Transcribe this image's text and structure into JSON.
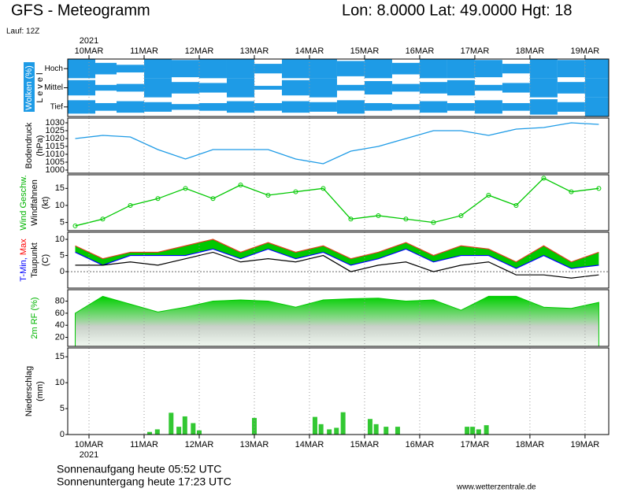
{
  "header": {
    "title": "GFS - Meteogramm",
    "location": "Lon: 8.0000 Lat: 49.0000 Hgt: 18",
    "run": "Lauf: 12Z"
  },
  "time_axis": {
    "year": "2021",
    "xlim": [
      -0.386,
      9.43
    ],
    "xticks": [
      {
        "value": 0,
        "label": "10MAR"
      },
      {
        "value": 1,
        "label": "11MAR"
      },
      {
        "value": 2,
        "label": "12MAR"
      },
      {
        "value": 3,
        "label": "13MAR"
      },
      {
        "value": 4,
        "label": "14MAR"
      },
      {
        "value": 5,
        "label": "15MAR"
      },
      {
        "value": 6,
        "label": "16MAR"
      },
      {
        "value": 7,
        "label": "17MAR"
      },
      {
        "value": 8,
        "label": "18MAR"
      },
      {
        "value": 9,
        "label": "19MAR"
      }
    ]
  },
  "chart_data": [
    {
      "type": "cloud",
      "ylabel": [
        [
          {
            "text": "Wolken (%)",
            "color": "#ffffff"
          }
        ],
        [
          {
            "text": "L e v e l",
            "color": "#000000"
          }
        ]
      ],
      "categories": [
        "Hoch",
        "Mittel",
        "Tief"
      ],
      "color": "#1e9be6",
      "x": [
        -0.25,
        0.25,
        0.75,
        1.25,
        1.75,
        2.25,
        2.75,
        3.25,
        3.75,
        4.25,
        4.75,
        5.25,
        5.75,
        6.25,
        6.75,
        7.25,
        7.75,
        8.25,
        8.75,
        9.25
      ],
      "series": [
        {
          "name": "Hoch",
          "values": [
            100,
            60,
            40,
            100,
            90,
            100,
            100,
            50,
            100,
            100,
            80,
            100,
            60,
            100,
            100,
            90,
            50,
            100,
            90,
            100
          ]
        },
        {
          "name": "Mittel",
          "values": [
            80,
            30,
            40,
            100,
            60,
            50,
            100,
            20,
            80,
            100,
            30,
            70,
            40,
            60,
            80,
            30,
            50,
            100,
            60,
            100
          ]
        },
        {
          "name": "Tief",
          "values": [
            70,
            40,
            60,
            50,
            30,
            40,
            60,
            40,
            60,
            50,
            70,
            40,
            30,
            60,
            40,
            70,
            40,
            80,
            50,
            100
          ]
        }
      ]
    },
    {
      "type": "line",
      "ylabel": [
        [
          {
            "text": "Bodendruck",
            "color": "#000000"
          }
        ],
        [
          {
            "text": "(hPa)",
            "color": "#000000"
          }
        ]
      ],
      "ylim": [
        998,
        1033
      ],
      "yticks": [
        1000,
        1005,
        1010,
        1015,
        1020,
        1025,
        1030
      ],
      "x": [
        -0.25,
        0.25,
        0.75,
        1.25,
        1.75,
        2.25,
        2.75,
        3.25,
        3.75,
        4.25,
        4.75,
        5.25,
        5.75,
        6.25,
        6.75,
        7.25,
        7.75,
        8.25,
        8.75,
        9.25
      ],
      "series": [
        {
          "name": "Bodendruck",
          "color": "#1e9be6",
          "values": [
            1020,
            1022,
            1021,
            1013,
            1007,
            1013,
            1013,
            1013,
            1007,
            1004,
            1012,
            1015,
            1020,
            1025,
            1025,
            1022,
            1026,
            1027,
            1030,
            1029
          ]
        }
      ]
    },
    {
      "type": "line",
      "markers": true,
      "ylabel": [
        [
          {
            "text": "Wind Geschw.",
            "color": "#00b400"
          }
        ],
        [
          {
            "text": "Windfahnen",
            "color": "#000000"
          }
        ],
        [
          {
            "text": "(kt)",
            "color": "#000000"
          }
        ]
      ],
      "ylim": [
        2.6,
        19
      ],
      "yticks": [
        5,
        10,
        15
      ],
      "x": [
        -0.25,
        0.25,
        0.75,
        1.25,
        1.75,
        2.25,
        2.75,
        3.25,
        3.75,
        4.25,
        4.75,
        5.25,
        5.75,
        6.25,
        6.75,
        7.25,
        7.75,
        8.25,
        8.75,
        9.25
      ],
      "series": [
        {
          "name": "Wind Geschw.",
          "color": "#00c800",
          "values": [
            4,
            6,
            10,
            12,
            15,
            12,
            16,
            13,
            14,
            15,
            6,
            7,
            6,
            5,
            7,
            13,
            10,
            18,
            14,
            15
          ]
        }
      ]
    },
    {
      "type": "temp",
      "ylabel": [
        [
          {
            "text": "T-Min, ",
            "color": "#0000ff"
          },
          {
            "text": "Max",
            "color": "#ff0000"
          }
        ],
        [
          {
            "text": "Taupunkt",
            "color": "#000000"
          }
        ],
        [
          {
            "text": "(C)",
            "color": "#000000"
          }
        ]
      ],
      "ylim": [
        -5.1,
        12.2
      ],
      "yticks": [
        0,
        5,
        10
      ],
      "fill": "#00c800",
      "x": [
        -0.25,
        0.25,
        0.75,
        1.25,
        1.75,
        2.25,
        2.75,
        3.25,
        3.75,
        4.25,
        4.75,
        5.25,
        5.75,
        6.25,
        6.75,
        7.25,
        7.75,
        8.25,
        8.75,
        9.25
      ],
      "series": [
        {
          "name": "Max",
          "color": "#e04020",
          "values": [
            8,
            4,
            6,
            6,
            8,
            10,
            6,
            9,
            6,
            8,
            4,
            6,
            9,
            5,
            8,
            7,
            3,
            8,
            3,
            6
          ]
        },
        {
          "name": "T-Min",
          "color": "#0000ff",
          "values": [
            6,
            2,
            5,
            5,
            5,
            7,
            4,
            7,
            4,
            6,
            2,
            4,
            7,
            3,
            5,
            5,
            1,
            5,
            1,
            2
          ]
        },
        {
          "name": "Taupunkt",
          "color": "#000000",
          "values": [
            2,
            2,
            3,
            2,
            4,
            6,
            3,
            4,
            3,
            5,
            0,
            2,
            3,
            0,
            2,
            3,
            -1,
            -1,
            -2,
            -1
          ]
        }
      ]
    },
    {
      "type": "area",
      "ylabel": [
        [
          {
            "text": "2m RF (%)",
            "color": "#00b400"
          }
        ]
      ],
      "ylim": [
        5,
        99
      ],
      "yticks": [
        20,
        40,
        60,
        80
      ],
      "x": [
        -0.25,
        0.25,
        0.75,
        1.25,
        1.75,
        2.25,
        2.75,
        3.25,
        3.75,
        4.25,
        4.75,
        5.25,
        5.75,
        6.25,
        6.75,
        7.25,
        7.75,
        8.25,
        8.75,
        9.25
      ],
      "series": [
        {
          "name": "2m RF",
          "color": "#00c800",
          "values": [
            60,
            88,
            75,
            62,
            70,
            80,
            82,
            80,
            70,
            82,
            84,
            85,
            80,
            82,
            65,
            88,
            88,
            70,
            68,
            78
          ]
        }
      ]
    },
    {
      "type": "bar",
      "ylabel": [
        [
          {
            "text": "Niederschlag",
            "color": "#000000"
          }
        ],
        [
          {
            "text": "(mm)",
            "color": "#000000"
          }
        ]
      ],
      "ylim": [
        0,
        16.7
      ],
      "yticks": [
        0,
        5,
        10,
        15
      ],
      "x": [
        1.1,
        1.24,
        1.49,
        1.63,
        1.74,
        1.89,
        2.0,
        3.0,
        4.1,
        4.21,
        4.36,
        4.49,
        4.61,
        5.1,
        5.21,
        5.39,
        5.6,
        6.86,
        6.96,
        7.07,
        7.21
      ],
      "series": [
        {
          "name": "Niederschlag",
          "color": "#32c832",
          "values": [
            0.5,
            1,
            4.2,
            1.5,
            3.5,
            2.2,
            0.8,
            3.2,
            3.4,
            2,
            1,
            1.3,
            4.3,
            3,
            2,
            1.5,
            1.5,
            1.5,
            1.5,
            1,
            1.8
          ]
        }
      ]
    }
  ],
  "footer": {
    "sunrise": "Sonnenaufgang heute 05:52 UTC",
    "sunset": "Sonnenuntergang heute 17:23 UTC",
    "source": "www.wetterzentrale.de"
  }
}
